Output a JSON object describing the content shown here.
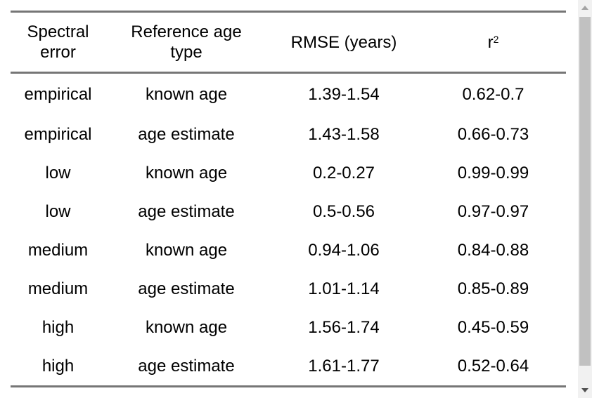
{
  "table": {
    "headers": {
      "spectral_error": [
        "Spectral",
        "error"
      ],
      "reference_age_type": [
        "Reference age",
        "type"
      ],
      "rmse": "RMSE (years)",
      "r2_base": "r",
      "r2_exp": "2"
    },
    "rows": [
      {
        "spectral_error": "empirical",
        "reference_age_type": "known age",
        "rmse": "1.39-1.54",
        "r2": "0.62-0.7"
      },
      {
        "spectral_error": "empirical",
        "reference_age_type": "age estimate",
        "rmse": "1.43-1.58",
        "r2": "0.66-0.73"
      },
      {
        "spectral_error": "low",
        "reference_age_type": "known age",
        "rmse": "0.2-0.27",
        "r2": "0.99-0.99"
      },
      {
        "spectral_error": "low",
        "reference_age_type": "age estimate",
        "rmse": "0.5-0.56",
        "r2": "0.97-0.97"
      },
      {
        "spectral_error": "medium",
        "reference_age_type": "known age",
        "rmse": "0.94-1.06",
        "r2": "0.84-0.88"
      },
      {
        "spectral_error": "medium",
        "reference_age_type": "age estimate",
        "rmse": "1.01-1.14",
        "r2": "0.85-0.89"
      },
      {
        "spectral_error": "high",
        "reference_age_type": "known age",
        "rmse": "1.56-1.74",
        "r2": "0.45-0.59"
      },
      {
        "spectral_error": "high",
        "reference_age_type": "age estimate",
        "rmse": "1.61-1.77",
        "r2": "0.52-0.64"
      }
    ]
  },
  "scrollbar": {
    "up_icon": "triangle-up-icon",
    "down_icon": "triangle-down-icon"
  }
}
